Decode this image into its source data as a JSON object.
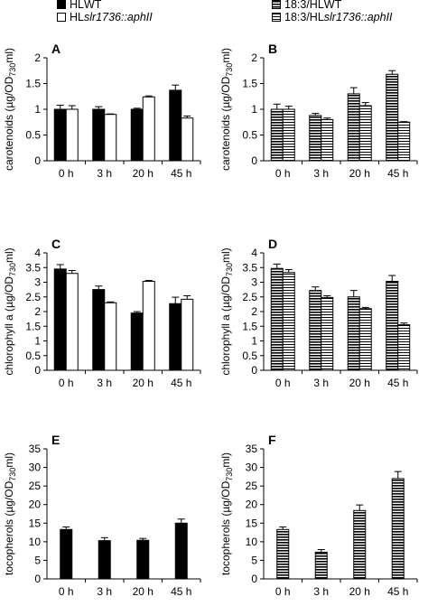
{
  "legend": {
    "left": [
      {
        "prefix": "HL ",
        "name": "WT",
        "swatch": "solid"
      },
      {
        "prefix": "HL ",
        "name": "slr1736::aphII",
        "swatch": "open"
      }
    ],
    "right": [
      {
        "prefix": "18:3/HL ",
        "name": "WT",
        "swatch": "stripe-dark"
      },
      {
        "prefix": "18:3/HL ",
        "name": "slr1736::aphII",
        "swatch": "stripe-light"
      }
    ]
  },
  "chart_data": [
    {
      "type": "bar",
      "panel": "A",
      "categories": [
        "0 h",
        "3 h",
        "20 h",
        "45 h"
      ],
      "ylabel": "carotenoids (µg/OD730ml)",
      "ylim": [
        0,
        2
      ],
      "yticks": [
        "0",
        "0.5",
        "1",
        "1.5",
        "2"
      ],
      "ytick_values": [
        0,
        0.5,
        1,
        1.5,
        2
      ],
      "series": [
        {
          "values": [
            1.0,
            1.0,
            1.0,
            1.37
          ],
          "errors": [
            0.08,
            0.05,
            0.02,
            0.1
          ],
          "fill": "solid"
        },
        {
          "values": [
            1.0,
            0.9,
            1.24,
            0.83
          ],
          "errors": [
            0.07,
            0.01,
            0.02,
            0.04
          ],
          "fill": "open"
        }
      ]
    },
    {
      "type": "bar",
      "panel": "B",
      "categories": [
        "0 h",
        "3 h",
        "20 h",
        "45 h"
      ],
      "ylabel": "carotenoids (µg/OD730ml)",
      "ylim": [
        0,
        2
      ],
      "yticks": [
        "0",
        "0.5",
        "1",
        "1.5",
        "2"
      ],
      "ytick_values": [
        0,
        0.5,
        1,
        1.5,
        2
      ],
      "series": [
        {
          "values": [
            1.0,
            0.88,
            1.3,
            1.68
          ],
          "errors": [
            0.1,
            0.04,
            0.12,
            0.07
          ],
          "fill": "stripe-dark"
        },
        {
          "values": [
            1.0,
            0.8,
            1.07,
            0.75
          ],
          "errors": [
            0.06,
            0.03,
            0.06,
            0.01
          ],
          "fill": "stripe-light"
        }
      ]
    },
    {
      "type": "bar",
      "panel": "C",
      "categories": [
        "0 h",
        "3 h",
        "20 h",
        "45 h"
      ],
      "ylabel": "chlorophyll a (µg/OD730ml)",
      "ylim": [
        0,
        4
      ],
      "yticks": [
        "0",
        "0.5",
        "1",
        "1.5",
        "2",
        "2.5",
        "3",
        "3.5",
        "4"
      ],
      "ytick_values": [
        0,
        0.5,
        1,
        1.5,
        2,
        2.5,
        3,
        3.5,
        4
      ],
      "series": [
        {
          "values": [
            3.45,
            2.75,
            1.95,
            2.27
          ],
          "errors": [
            0.15,
            0.12,
            0.05,
            0.22
          ],
          "fill": "solid"
        },
        {
          "values": [
            3.3,
            2.3,
            3.03,
            2.42
          ],
          "errors": [
            0.1,
            0.03,
            0.03,
            0.12
          ],
          "fill": "open"
        }
      ]
    },
    {
      "type": "bar",
      "panel": "D",
      "categories": [
        "0 h",
        "3 h",
        "20 h",
        "45 h"
      ],
      "ylabel": "chlorophyll a (µg/OD730ml)",
      "ylim": [
        0,
        4
      ],
      "yticks": [
        "0",
        "0.5",
        "1",
        "1.5",
        "2",
        "2.5",
        "3",
        "3.5",
        "4"
      ],
      "ytick_values": [
        0,
        0.5,
        1,
        1.5,
        2,
        2.5,
        3,
        3.5,
        4
      ],
      "series": [
        {
          "values": [
            3.47,
            2.72,
            2.5,
            3.03
          ],
          "errors": [
            0.15,
            0.12,
            0.22,
            0.2
          ],
          "fill": "stripe-dark"
        },
        {
          "values": [
            3.33,
            2.48,
            2.1,
            1.55
          ],
          "errors": [
            0.1,
            0.06,
            0.04,
            0.06
          ],
          "fill": "stripe-light"
        }
      ]
    },
    {
      "type": "bar",
      "panel": "E",
      "categories": [
        "0 h",
        "3 h",
        "20 h",
        "45 h"
      ],
      "ylabel": "tocopherols (µg/OD730ml)",
      "ylim": [
        0,
        35
      ],
      "yticks": [
        "0",
        "5",
        "10",
        "15",
        "20",
        "25",
        "30",
        "35"
      ],
      "ytick_values": [
        0,
        5,
        10,
        15,
        20,
        25,
        30,
        35
      ],
      "series": [
        {
          "values": [
            13.3,
            10.3,
            10.4,
            15.0
          ],
          "errors": [
            0.7,
            0.8,
            0.5,
            1.1
          ],
          "fill": "solid"
        }
      ]
    },
    {
      "type": "bar",
      "panel": "F",
      "categories": [
        "0 h",
        "3 h",
        "20 h",
        "45 h"
      ],
      "ylabel": "tocopherols (µg/OD730ml)",
      "ylim": [
        0,
        35
      ],
      "yticks": [
        "0",
        "5",
        "10",
        "15",
        "20",
        "25",
        "30",
        "35"
      ],
      "ytick_values": [
        0,
        5,
        10,
        15,
        20,
        25,
        30,
        35
      ],
      "series": [
        {
          "values": [
            13.3,
            7.2,
            18.4,
            27.0
          ],
          "errors": [
            0.7,
            0.7,
            1.5,
            1.9
          ],
          "fill": "stripe-dark"
        }
      ]
    }
  ]
}
